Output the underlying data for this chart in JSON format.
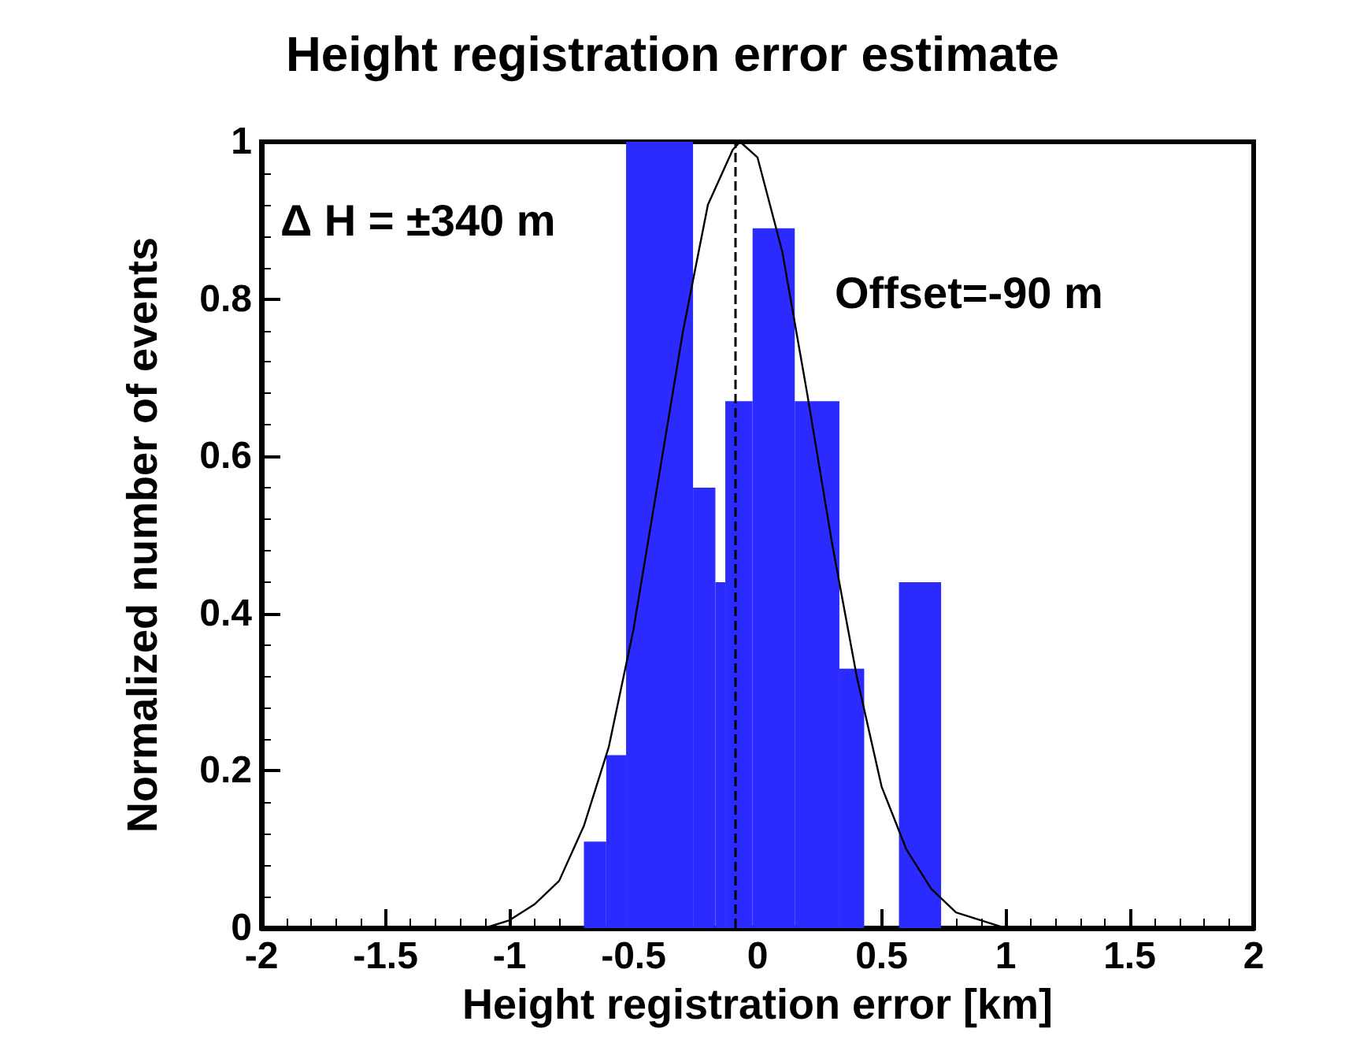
{
  "chart_data": {
    "type": "histogram",
    "title": "Height registration error estimate",
    "xlabel": "Height registration error [km]",
    "ylabel": "Normalized number of events",
    "annotations": [
      "Δ H = ±340 m",
      "Offset=-90 m"
    ],
    "series": [
      {
        "color": "#2b2bff",
        "bins": [
          -0.7,
          -0.61,
          -0.53,
          -0.26,
          -0.17,
          -0.13,
          -0.02,
          0.15,
          0.33,
          0.43,
          0.57,
          0.74
        ],
        "values": [
          0.11,
          0.22,
          1,
          0.56,
          0.44,
          0.67,
          0.89,
          0.67,
          0.33,
          0,
          0.44
        ]
      },
      {
        "type": "line",
        "color": "#000000",
        "x": [
          -2,
          -1.2,
          -1.1,
          -1.0,
          -0.9,
          -0.8,
          -0.7,
          -0.6,
          -0.5,
          -0.4,
          -0.3,
          -0.2,
          -0.1,
          -0.07,
          0,
          0.1,
          0.2,
          0.3,
          0.4,
          0.5,
          0.6,
          0.7,
          0.8,
          0.9,
          1.0,
          2
        ],
        "values": [
          0,
          0,
          0,
          0.01,
          0.03,
          0.06,
          0.13,
          0.23,
          0.38,
          0.57,
          0.76,
          0.92,
          0.99,
          1,
          0.98,
          0.86,
          0.68,
          0.49,
          0.32,
          0.18,
          0.1,
          0.05,
          0.02,
          0.01,
          0,
          0
        ]
      }
    ],
    "ref_lines": [
      {
        "axis": "x",
        "value": -0.09,
        "label": null,
        "color": "#000000",
        "line_style": "dashed"
      }
    ],
    "xlim": [
      -2,
      2
    ],
    "xticks": [
      -2,
      -1.5,
      -1,
      -0.5,
      0,
      0.5,
      1,
      1.5,
      2
    ],
    "ylim": [
      0,
      1
    ],
    "yticks": [
      0,
      0.2,
      0.4,
      0.6,
      0.8,
      1
    ],
    "grid": false,
    "marker": "none",
    "line_style": "solid"
  }
}
